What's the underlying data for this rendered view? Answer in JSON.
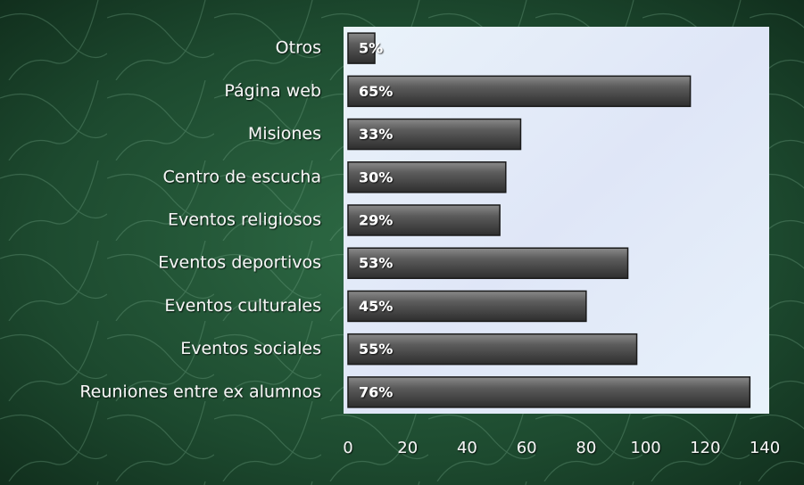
{
  "chart_data": {
    "type": "bar",
    "orientation": "horizontal",
    "categories": [
      "Otros",
      "Página web",
      "Misiones",
      "Centro de escucha",
      "Eventos religiosos",
      "Eventos deportivos",
      "Eventos culturales",
      "Eventos sociales",
      "Reuniones entre ex alumnos"
    ],
    "values": [
      9,
      115,
      58,
      53,
      51,
      94,
      80,
      97,
      135
    ],
    "data_labels": [
      "5%",
      "65%",
      "33%",
      "30%",
      "29%",
      "53%",
      "45%",
      "55%",
      "76%"
    ],
    "color": "#5a5a5a",
    "xlim": [
      0,
      140
    ],
    "xticks": [
      0,
      20,
      40,
      60,
      80,
      100,
      120,
      140
    ],
    "grid": false
  }
}
